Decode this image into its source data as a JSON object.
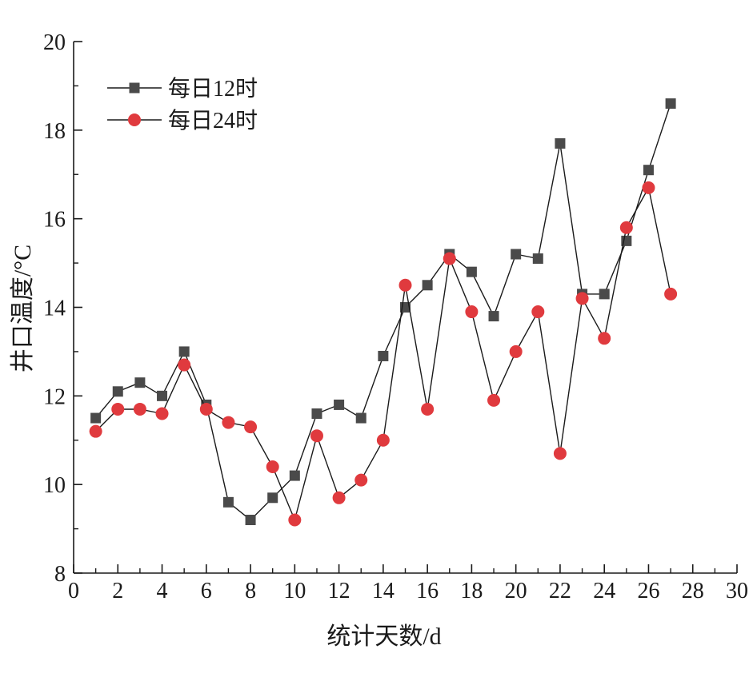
{
  "chart_data": {
    "type": "line",
    "title": "",
    "xlabel": "统计天数/d",
    "ylabel": "井口温度/°C",
    "xlim": [
      0,
      30
    ],
    "ylim": [
      8,
      20
    ],
    "x_ticks": [
      "0",
      "2",
      "4",
      "6",
      "8",
      "10",
      "12",
      "14",
      "16",
      "18",
      "20",
      "22",
      "24",
      "26",
      "28",
      "30"
    ],
    "y_ticks": [
      "8",
      "10",
      "12",
      "14",
      "16",
      "18",
      "20"
    ],
    "grid": false,
    "legend_position": "top-left",
    "series": [
      {
        "name": "每日12时",
        "marker": "square",
        "color": "#4a4a4a",
        "x": [
          1,
          2,
          3,
          4,
          5,
          6,
          7,
          8,
          9,
          10,
          11,
          12,
          13,
          14,
          15,
          16,
          17,
          18,
          19,
          20,
          21,
          22,
          23,
          24,
          25,
          26,
          27
        ],
        "values": [
          11.5,
          12.1,
          12.3,
          12.0,
          13.0,
          11.8,
          9.6,
          9.2,
          9.7,
          10.2,
          11.6,
          11.8,
          11.5,
          12.9,
          14.0,
          14.5,
          15.2,
          14.8,
          13.8,
          15.2,
          15.1,
          17.7,
          14.3,
          14.3,
          15.5,
          17.1,
          18.6
        ]
      },
      {
        "name": "每日24时",
        "marker": "circle",
        "color": "#e03a3e",
        "x": [
          1,
          2,
          3,
          4,
          5,
          6,
          7,
          8,
          9,
          10,
          11,
          12,
          13,
          14,
          15,
          16,
          17,
          18,
          19,
          20,
          21,
          22,
          23,
          24,
          25,
          26,
          27
        ],
        "values": [
          11.2,
          11.7,
          11.7,
          11.6,
          12.7,
          11.7,
          11.4,
          11.3,
          10.4,
          9.2,
          11.1,
          9.7,
          10.1,
          11.0,
          14.5,
          11.7,
          15.1,
          13.9,
          11.9,
          13.0,
          13.9,
          10.7,
          14.2,
          13.3,
          15.8,
          16.7,
          14.3
        ]
      }
    ]
  }
}
